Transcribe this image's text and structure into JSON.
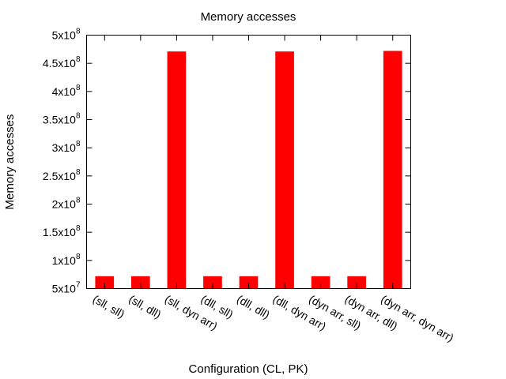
{
  "chart_data": {
    "type": "bar",
    "title": "Memory accesses",
    "xlabel": "Configuration (CL, PK)",
    "ylabel": "Memory accesses",
    "categories": [
      "(sll, sll)",
      "(sll, dll)",
      "(sll, dyn arr)",
      "(dll, sll)",
      "(dll, dll)",
      "(dll, dyn arr)",
      "(dyn arr, sll)",
      "(dyn arr, dll)",
      "(dyn arr, dyn arr)"
    ],
    "series": [
      {
        "values": [
          72000000,
          72000000,
          471000000,
          72000000,
          72000000,
          471000000,
          72000000,
          72000000,
          472000000
        ]
      }
    ],
    "ylim": [
      50000000,
      500000000
    ],
    "yticks": [
      {
        "value": 50000000,
        "mantissa": "5x10",
        "exp": "7"
      },
      {
        "value": 100000000,
        "mantissa": "1x10",
        "exp": "8"
      },
      {
        "value": 150000000,
        "mantissa": "1.5x10",
        "exp": "8"
      },
      {
        "value": 200000000,
        "mantissa": "2x10",
        "exp": "8"
      },
      {
        "value": 250000000,
        "mantissa": "2.5x10",
        "exp": "8"
      },
      {
        "value": 300000000,
        "mantissa": "3x10",
        "exp": "8"
      },
      {
        "value": 350000000,
        "mantissa": "3.5x10",
        "exp": "8"
      },
      {
        "value": 400000000,
        "mantissa": "4x10",
        "exp": "8"
      },
      {
        "value": 450000000,
        "mantissa": "4.5x10",
        "exp": "8"
      },
      {
        "value": 500000000,
        "mantissa": "5x10",
        "exp": "8"
      }
    ],
    "bar_color": "#ff0000",
    "grid": false,
    "legend": "none"
  }
}
